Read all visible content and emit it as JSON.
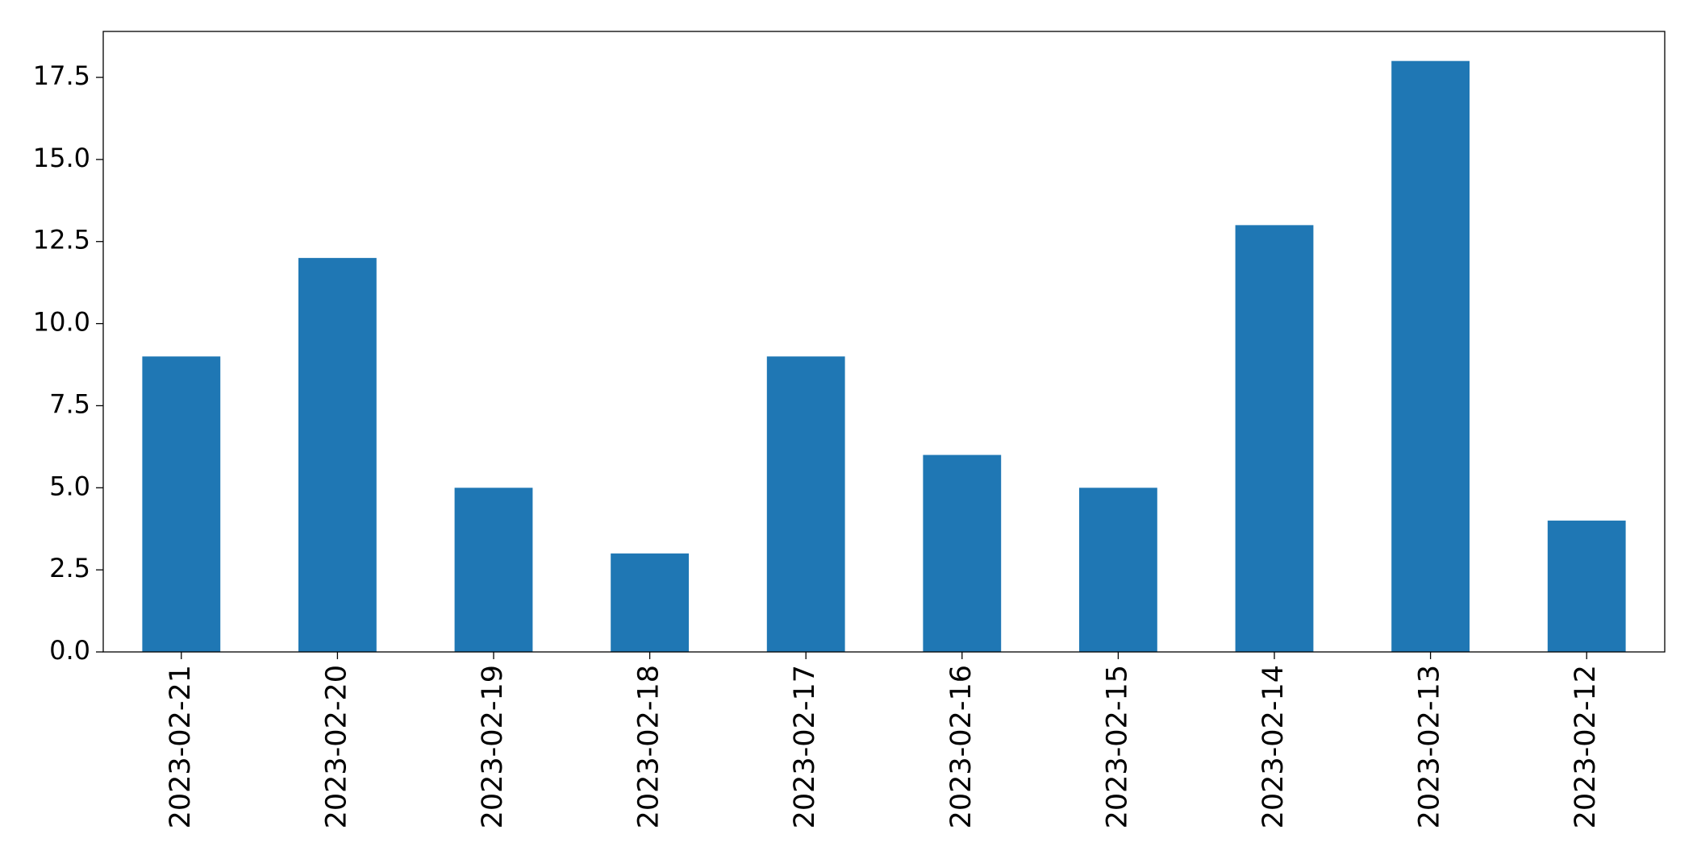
{
  "chart_data": {
    "type": "bar",
    "categories": [
      "2023-02-21",
      "2023-02-20",
      "2023-02-19",
      "2023-02-18",
      "2023-02-17",
      "2023-02-16",
      "2023-02-15",
      "2023-02-14",
      "2023-02-13",
      "2023-02-12"
    ],
    "values": [
      9,
      12,
      5,
      3,
      9,
      6,
      5,
      13,
      18,
      4
    ],
    "color": "#1f77b4",
    "ylim": [
      0,
      18.9
    ],
    "yticks": [
      {
        "value": 0,
        "label": "0.0"
      },
      2.5,
      {
        "value": 5,
        "label": "5.0"
      },
      7.5,
      {
        "value": 10,
        "label": "10.0"
      },
      12.5,
      {
        "value": 15,
        "label": "15.0"
      },
      17.5
    ],
    "grid": false
  }
}
